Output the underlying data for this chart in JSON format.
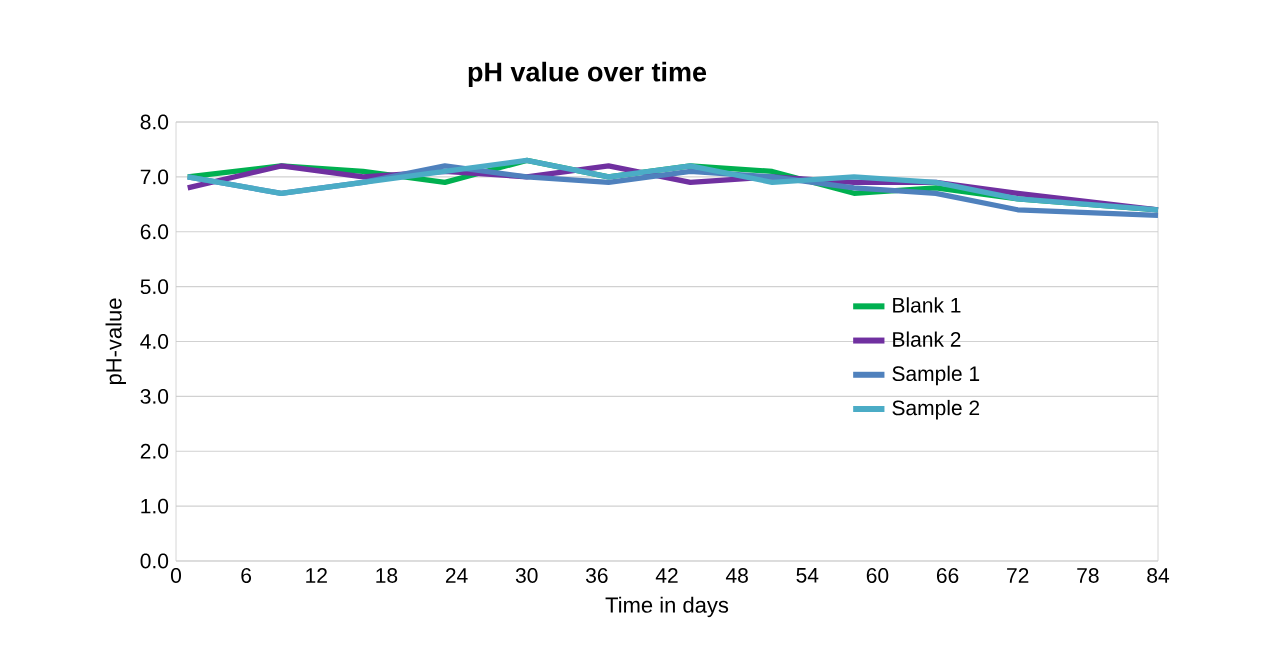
{
  "chart_data": {
    "type": "line",
    "title": "pH value over time",
    "xlabel": "Time in days",
    "ylabel": "pH-value",
    "x": [
      1,
      9,
      16,
      23,
      30,
      37,
      44,
      51,
      58,
      65,
      72,
      84
    ],
    "series": [
      {
        "name": "Blank 1",
        "color": "#00b050",
        "values": [
          7.0,
          7.2,
          7.1,
          6.9,
          7.3,
          7.0,
          7.2,
          7.1,
          6.7,
          6.8,
          6.6,
          6.4
        ]
      },
      {
        "name": "Blank 2",
        "color": "#7030a0",
        "values": [
          6.8,
          7.2,
          7.0,
          7.1,
          7.0,
          7.2,
          6.9,
          7.0,
          6.9,
          6.9,
          6.7,
          6.4
        ]
      },
      {
        "name": "Sample 1",
        "color": "#4f81bd",
        "values": [
          7.0,
          6.7,
          6.9,
          7.2,
          7.0,
          6.9,
          7.1,
          7.0,
          6.8,
          6.7,
          6.4,
          6.3
        ]
      },
      {
        "name": "Sample 2",
        "color": "#4bacc6",
        "values": [
          7.0,
          6.7,
          6.9,
          7.1,
          7.3,
          7.0,
          7.2,
          6.9,
          7.0,
          6.9,
          6.6,
          6.4
        ]
      }
    ],
    "xlim": [
      0,
      84
    ],
    "xticks": [
      0,
      6,
      12,
      18,
      24,
      30,
      36,
      42,
      48,
      54,
      60,
      66,
      72,
      78,
      84
    ],
    "ylim": [
      0,
      8
    ],
    "yticks": [
      {
        "value": 0,
        "label": "0.0"
      },
      {
        "value": 1,
        "label": "1.0"
      },
      {
        "value": 2,
        "label": "2.0"
      },
      {
        "value": 3,
        "label": "3.0"
      },
      {
        "value": 4,
        "label": "4.0"
      },
      {
        "value": 5,
        "label": "5.0"
      },
      {
        "value": 6,
        "label": "6.0"
      },
      {
        "value": 7,
        "label": "7.0"
      },
      {
        "value": 8,
        "label": "8.0"
      }
    ],
    "grid": "y",
    "legend": "right",
    "marker": "none",
    "line_style": "solid"
  }
}
